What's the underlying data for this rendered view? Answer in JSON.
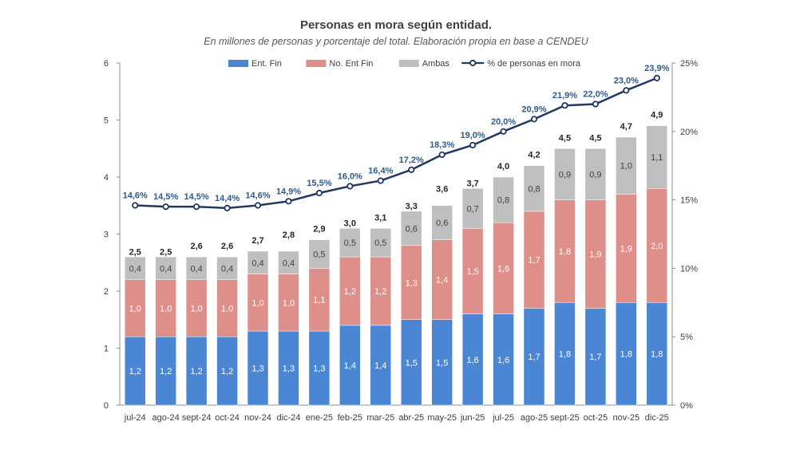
{
  "title": "Personas en mora según entidad.",
  "subtitle": "En millones de personas y porcentaje del total. Elaboración propia en base a CENDEU",
  "chart_data": {
    "type": "bar",
    "stacked": true,
    "categories": [
      "jul-24",
      "ago-24",
      "sept-24",
      "oct-24",
      "nov-24",
      "dic-24",
      "ene-25",
      "feb-25",
      "mar-25",
      "abr-25",
      "may-25",
      "jun-25",
      "jul-25",
      "ago-25",
      "sept-25",
      "oct-25",
      "nov-25",
      "dic-25"
    ],
    "series": [
      {
        "name": "Ent. Fin",
        "color": "#4a86d4",
        "values": [
          1.2,
          1.2,
          1.2,
          1.2,
          1.3,
          1.3,
          1.3,
          1.4,
          1.4,
          1.5,
          1.5,
          1.6,
          1.6,
          1.7,
          1.8,
          1.7,
          1.8,
          1.8
        ],
        "labels": [
          "1,2",
          "1,2",
          "1,2",
          "1,2",
          "1,3",
          "1,3",
          "1,3",
          "1,4",
          "1,4",
          "1,5",
          "1,5",
          "1,6",
          "1,6",
          "1,7",
          "1,8",
          "1,7",
          "1,8",
          "1,8"
        ]
      },
      {
        "name": "No. Ent Fin",
        "color": "#df8f8a",
        "values": [
          1.0,
          1.0,
          1.0,
          1.0,
          1.0,
          1.0,
          1.1,
          1.2,
          1.2,
          1.3,
          1.4,
          1.5,
          1.6,
          1.7,
          1.8,
          1.9,
          1.9,
          2.0
        ],
        "labels": [
          "1,0",
          "1,0",
          "1,0",
          "1,0",
          "1,0",
          "1,0",
          "1,1",
          "1,2",
          "1,2",
          "1,3",
          "1,4",
          "1,5",
          "1,6",
          "1,7",
          "1,8",
          "1,9",
          "1,9",
          "2,0"
        ]
      },
      {
        "name": "Ambas",
        "color": "#bfbfbf",
        "values": [
          0.4,
          0.4,
          0.4,
          0.4,
          0.4,
          0.4,
          0.5,
          0.5,
          0.5,
          0.6,
          0.6,
          0.7,
          0.8,
          0.8,
          0.9,
          0.9,
          1.0,
          1.1
        ],
        "labels": [
          "0,4",
          "0,4",
          "0,4",
          "0,4",
          "0,4",
          "0,4",
          "0,5",
          "0,5",
          "0,5",
          "0,6",
          "0,6",
          "0,7",
          "0,8",
          "0,8",
          "0,9",
          "0,9",
          "1,0",
          "1,1"
        ]
      }
    ],
    "totals": [
      2.5,
      2.5,
      2.6,
      2.6,
      2.7,
      2.8,
      2.9,
      3.0,
      3.1,
      3.3,
      3.6,
      3.7,
      4.0,
      4.2,
      4.5,
      4.5,
      4.7,
      4.9
    ],
    "totals_labels": [
      "2,5",
      "2,5",
      "2,6",
      "2,6",
      "2,7",
      "2,8",
      "2,9",
      "3,0",
      "3,1",
      "3,3",
      "3,6",
      "3,7",
      "4,0",
      "4,2",
      "4,5",
      "4,5",
      "4,7",
      "4,9"
    ],
    "line": {
      "name": "% de personas en mora",
      "axis": "right",
      "color": "#1f3864",
      "values": [
        14.6,
        14.5,
        14.5,
        14.4,
        14.6,
        14.9,
        15.5,
        16.0,
        16.4,
        17.2,
        18.3,
        19.0,
        20.0,
        20.9,
        21.9,
        22.0,
        23.0,
        23.9
      ],
      "labels": [
        "14,6%",
        "14,5%",
        "14,5%",
        "14,4%",
        "14,6%",
        "14,9%",
        "15,5%",
        "16,0%",
        "16,4%",
        "17,2%",
        "18,3%",
        "19,0%",
        "20,0%",
        "20,9%",
        "21,9%",
        "22,0%",
        "23,0%",
        "23,9%"
      ]
    },
    "ylim": [
      0,
      6
    ],
    "yticks": [
      "0",
      "1",
      "2",
      "3",
      "4",
      "5",
      "6"
    ],
    "y2lim": [
      0,
      25
    ],
    "y2ticks": [
      "0%",
      "5%",
      "10%",
      "15%",
      "20%",
      "25%"
    ],
    "legend_position": "top",
    "grid": false
  }
}
